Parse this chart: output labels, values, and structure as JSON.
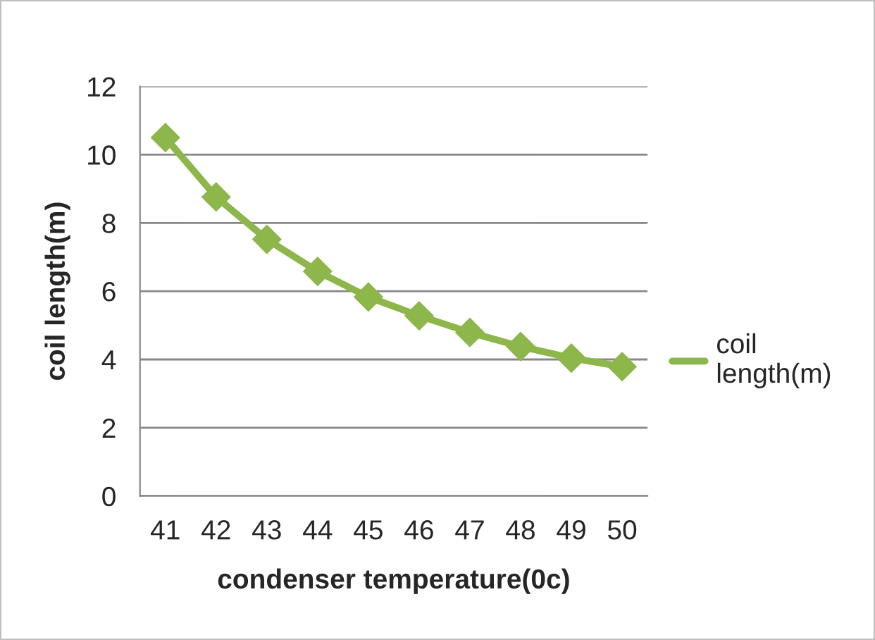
{
  "chart_data": {
    "type": "line",
    "xlabel": "condenser temperature(0c)",
    "ylabel": "coil length(m)",
    "categories": [
      "41",
      "42",
      "43",
      "44",
      "45",
      "46",
      "47",
      "48",
      "49",
      "50"
    ],
    "series": [
      {
        "name": "coil\nlength(m)",
        "color": "#8db64b",
        "values": [
          10.5,
          8.76,
          7.52,
          6.58,
          5.83,
          5.28,
          4.79,
          4.38,
          4.04,
          3.79
        ]
      }
    ],
    "ylim": [
      0,
      12
    ],
    "yticks": [
      0,
      2,
      4,
      6,
      8,
      10,
      12
    ],
    "grid": "y",
    "legend": "right",
    "marker": "diamond",
    "line_style": "solid"
  }
}
